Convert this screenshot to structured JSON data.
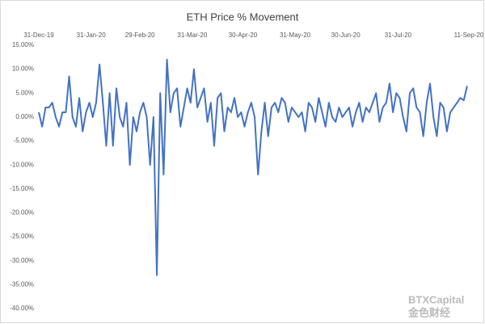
{
  "chart_data": {
    "type": "line",
    "title": "ETH Price % Movement",
    "color": "#4472c4",
    "x": [
      "2019-12-31",
      "2020-01-02",
      "2020-01-04",
      "2020-01-06",
      "2020-01-08",
      "2020-01-10",
      "2020-01-12",
      "2020-01-14",
      "2020-01-16",
      "2020-01-18",
      "2020-01-20",
      "2020-01-22",
      "2020-01-24",
      "2020-01-26",
      "2020-01-28",
      "2020-01-30",
      "2020-02-01",
      "2020-02-03",
      "2020-02-05",
      "2020-02-07",
      "2020-02-09",
      "2020-02-11",
      "2020-02-13",
      "2020-02-15",
      "2020-02-17",
      "2020-02-19",
      "2020-02-21",
      "2020-02-23",
      "2020-02-25",
      "2020-02-27",
      "2020-02-29",
      "2020-03-02",
      "2020-03-04",
      "2020-03-06",
      "2020-03-08",
      "2020-03-10",
      "2020-03-12",
      "2020-03-14",
      "2020-03-16",
      "2020-03-18",
      "2020-03-20",
      "2020-03-22",
      "2020-03-24",
      "2020-03-26",
      "2020-03-28",
      "2020-03-30",
      "2020-04-01",
      "2020-04-03",
      "2020-04-05",
      "2020-04-07",
      "2020-04-09",
      "2020-04-11",
      "2020-04-13",
      "2020-04-15",
      "2020-04-17",
      "2020-04-19",
      "2020-04-21",
      "2020-04-23",
      "2020-04-25",
      "2020-04-27",
      "2020-04-29",
      "2020-05-01",
      "2020-05-03",
      "2020-05-05",
      "2020-05-07",
      "2020-05-09",
      "2020-05-11",
      "2020-05-13",
      "2020-05-15",
      "2020-05-17",
      "2020-05-19",
      "2020-05-21",
      "2020-05-23",
      "2020-05-25",
      "2020-05-27",
      "2020-05-29",
      "2020-05-31",
      "2020-06-02",
      "2020-06-04",
      "2020-06-06",
      "2020-06-08",
      "2020-06-10",
      "2020-06-12",
      "2020-06-14",
      "2020-06-16",
      "2020-06-18",
      "2020-06-20",
      "2020-06-22",
      "2020-06-24",
      "2020-06-26",
      "2020-06-28",
      "2020-06-30",
      "2020-07-02",
      "2020-07-04",
      "2020-07-06",
      "2020-07-08",
      "2020-07-10",
      "2020-07-12",
      "2020-07-14",
      "2020-07-16",
      "2020-07-18",
      "2020-07-20",
      "2020-07-22",
      "2020-07-24",
      "2020-07-26",
      "2020-07-28",
      "2020-07-30",
      "2020-08-01",
      "2020-08-03",
      "2020-08-05",
      "2020-08-07",
      "2020-08-09",
      "2020-08-11",
      "2020-08-13",
      "2020-08-15",
      "2020-08-17",
      "2020-08-19",
      "2020-08-21",
      "2020-08-23",
      "2020-08-25",
      "2020-08-27",
      "2020-08-29",
      "2020-08-31",
      "2020-09-02",
      "2020-09-04",
      "2020-09-06",
      "2020-09-08",
      "2020-09-10"
    ],
    "values": [
      1,
      -2,
      2,
      2,
      3,
      0,
      -2,
      1,
      1,
      8.5,
      0,
      -2,
      4,
      -3,
      1,
      3,
      0,
      3,
      11,
      3,
      -6,
      5,
      -6,
      6,
      0,
      -2,
      3,
      -10,
      0,
      -3,
      1,
      3,
      0,
      -10,
      0,
      -33,
      5,
      -12,
      12,
      1,
      5,
      6,
      -2,
      2,
      6,
      3,
      10,
      2,
      4,
      6,
      -1,
      3,
      -6,
      4,
      5,
      -3,
      2,
      1,
      4,
      0,
      1,
      -2,
      1,
      3,
      0,
      -12,
      -3,
      3,
      -4,
      2,
      3,
      1,
      4,
      3,
      -1,
      2,
      1,
      0,
      1,
      -3,
      3,
      2,
      -1,
      4,
      1,
      -2,
      3,
      0,
      -1,
      2,
      0,
      1,
      2,
      -2,
      1,
      3,
      -1,
      2,
      1,
      3,
      5,
      -1,
      2,
      3,
      7,
      1,
      5,
      4,
      0,
      -3,
      5,
      6,
      2,
      1,
      -4,
      3,
      7,
      0,
      -4,
      3,
      2,
      -3,
      1,
      2,
      3,
      4,
      3.5,
      6.5
    ],
    "xlim": [
      "2019-12-31",
      "2020-09-11"
    ],
    "xticks": [
      {
        "value": "2019-12-31",
        "label": "31-Dec-19"
      },
      {
        "value": "2020-01-31",
        "label": "31-Jan-20"
      },
      {
        "value": "2020-02-29",
        "label": "29-Feb-20"
      },
      {
        "value": "2020-03-31",
        "label": "31-Mar-20"
      },
      {
        "value": "2020-04-30",
        "label": "30-Apr-20"
      },
      {
        "value": "2020-05-31",
        "label": "31-May-20"
      },
      {
        "value": "2020-06-30",
        "label": "30-Jun-20"
      },
      {
        "value": "2020-07-31",
        "label": "31-Jul-20"
      },
      {
        "value": "2020-09-11",
        "label": "11-Sep-20"
      }
    ],
    "ylim": [
      -40,
      15
    ],
    "yticks": [
      {
        "value": 15,
        "label": "15.00%"
      },
      {
        "value": 10,
        "label": "10.00%"
      },
      {
        "value": 5,
        "label": "5.00%"
      },
      {
        "value": 0,
        "label": "0.00%"
      },
      {
        "value": -5,
        "label": "-5.00%"
      },
      {
        "value": -10,
        "label": "-10.00%"
      },
      {
        "value": -15,
        "label": "-15.00%"
      },
      {
        "value": -20,
        "label": "-20.00%"
      },
      {
        "value": -25,
        "label": "-25.00%"
      },
      {
        "value": -30,
        "label": "-30.00%"
      },
      {
        "value": -35,
        "label": "-35.00%"
      },
      {
        "value": -40,
        "label": "-40.00%"
      }
    ],
    "watermark": [
      "BTXCapital",
      "金色财经"
    ]
  }
}
